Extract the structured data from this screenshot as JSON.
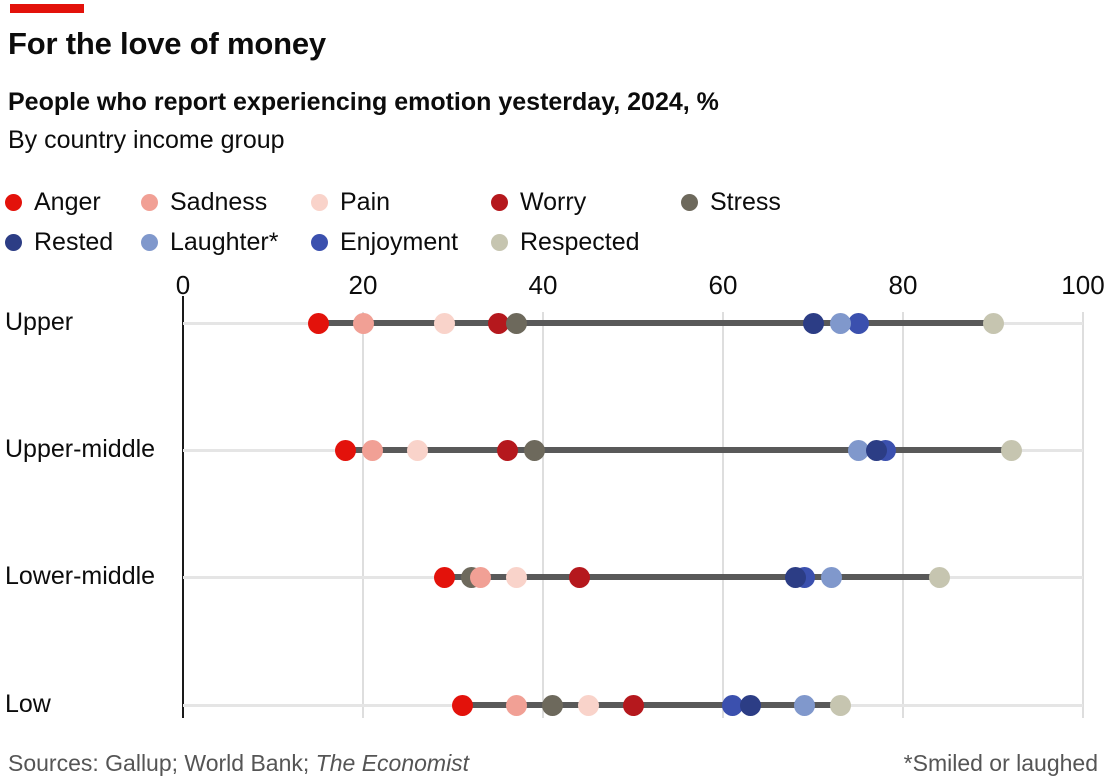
{
  "accent_color": "#e3120b",
  "header": {
    "title": "For the love of money",
    "subtitle": "People who report experiencing emotion yesterday, 2024, %",
    "byline": "By country income group"
  },
  "chart_data": {
    "type": "scatter",
    "subtype": "dot-plot",
    "title": "People who report experiencing emotion yesterday, 2024, %",
    "xlabel": "",
    "ylabel": "",
    "x_axis": {
      "min": 0,
      "max": 100,
      "ticks": [
        0,
        20,
        40,
        60,
        80,
        100
      ]
    },
    "grid": "vertical-light",
    "legend_position": "top",
    "emotions": [
      {
        "key": "anger",
        "label": "Anger",
        "color": "#e3120b"
      },
      {
        "key": "sadness",
        "label": "Sadness",
        "color": "#f1a095"
      },
      {
        "key": "pain",
        "label": "Pain",
        "color": "#f9d3ca"
      },
      {
        "key": "worry",
        "label": "Worry",
        "color": "#b5181d"
      },
      {
        "key": "stress",
        "label": "Stress",
        "color": "#6d695c"
      },
      {
        "key": "rested",
        "label": "Rested",
        "color": "#2c3d85"
      },
      {
        "key": "laughter",
        "label": "Laughter*",
        "color": "#8098cc"
      },
      {
        "key": "enjoyment",
        "label": "Enjoyment",
        "color": "#3b50ae"
      },
      {
        "key": "respected",
        "label": "Respected",
        "color": "#c6c5b0"
      }
    ],
    "legend_rows": [
      [
        "anger",
        "sadness",
        "pain",
        "worry",
        "stress"
      ],
      [
        "rested",
        "laughter",
        "enjoyment",
        "respected"
      ]
    ],
    "categories": [
      "Upper",
      "Upper-middle",
      "Lower-middle",
      "Low"
    ],
    "rows": [
      {
        "category": "Upper",
        "values": {
          "anger": 15,
          "sadness": 20,
          "pain": 29,
          "worry": 35,
          "stress": 37,
          "rested": 70,
          "laughter": 73,
          "enjoyment": 75,
          "respected": 90
        },
        "draw_order": [
          "anger",
          "sadness",
          "pain",
          "worry",
          "stress",
          "rested",
          "enjoyment",
          "laughter",
          "respected"
        ]
      },
      {
        "category": "Upper-middle",
        "values": {
          "anger": 18,
          "sadness": 21,
          "pain": 26,
          "worry": 36,
          "stress": 39,
          "laughter": 75,
          "rested": 77,
          "enjoyment": 78,
          "respected": 92
        },
        "draw_order": [
          "anger",
          "sadness",
          "pain",
          "worry",
          "stress",
          "enjoyment",
          "laughter",
          "rested",
          "respected"
        ]
      },
      {
        "category": "Lower-middle",
        "values": {
          "anger": 29,
          "stress": 32,
          "sadness": 33,
          "pain": 37,
          "worry": 44,
          "rested": 68,
          "enjoyment": 69,
          "laughter": 72,
          "respected": 84
        },
        "draw_order": [
          "anger",
          "stress",
          "sadness",
          "pain",
          "worry",
          "enjoyment",
          "rested",
          "laughter",
          "respected"
        ]
      },
      {
        "category": "Low",
        "values": {
          "anger": 31,
          "sadness": 37,
          "stress": 41,
          "pain": 45,
          "worry": 50,
          "enjoyment": 61,
          "rested": 63,
          "laughter": 69,
          "respected": 73
        },
        "draw_order": [
          "anger",
          "sadness",
          "stress",
          "pain",
          "worry",
          "enjoyment",
          "rested",
          "laughter",
          "respected"
        ]
      }
    ]
  },
  "footer": {
    "sources_prefix": "Sources: Gallup; World Bank; ",
    "sources_italic": "The Economist",
    "note": "*Smiled or laughed"
  }
}
